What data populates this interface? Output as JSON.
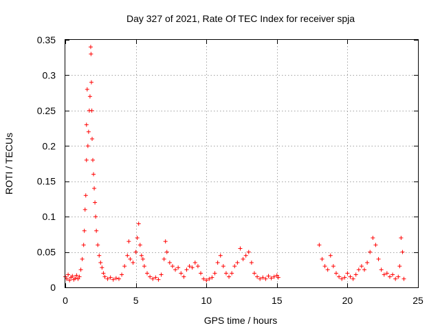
{
  "chart_data": {
    "type": "scatter",
    "title": "Day 327 of 2021, Rate Of TEC Index for receiver spja",
    "xlabel": "GPS time / hours",
    "ylabel": "ROTI / TECUs",
    "xlim": [
      0,
      25
    ],
    "ylim": [
      0,
      0.35
    ],
    "xticks": [
      0,
      5,
      10,
      15,
      20,
      25
    ],
    "xtick_labels": [
      "0",
      "5",
      "10",
      "15",
      "20",
      "25"
    ],
    "yticks": [
      0,
      0.05,
      0.1,
      0.15,
      0.2,
      0.25,
      0.3,
      0.35
    ],
    "ytick_labels": [
      "0",
      "0.05",
      "0.1",
      "0.15",
      "0.2",
      "0.25",
      "0.3",
      "0.35"
    ],
    "grid": true,
    "marker": "plus",
    "marker_color": "#ff0000",
    "series": [
      {
        "name": "ROTI",
        "points": [
          [
            0.0,
            0.015
          ],
          [
            0.1,
            0.012
          ],
          [
            0.2,
            0.018
          ],
          [
            0.3,
            0.01
          ],
          [
            0.4,
            0.014
          ],
          [
            0.5,
            0.016
          ],
          [
            0.6,
            0.011
          ],
          [
            0.7,
            0.013
          ],
          [
            0.8,
            0.017
          ],
          [
            0.9,
            0.012
          ],
          [
            1.0,
            0.015
          ],
          [
            1.1,
            0.025
          ],
          [
            1.2,
            0.04
          ],
          [
            1.3,
            0.06
          ],
          [
            1.35,
            0.08
          ],
          [
            1.4,
            0.11
          ],
          [
            1.45,
            0.13
          ],
          [
            1.5,
            0.18
          ],
          [
            1.5,
            0.23
          ],
          [
            1.55,
            0.28
          ],
          [
            1.6,
            0.2
          ],
          [
            1.65,
            0.22
          ],
          [
            1.7,
            0.25
          ],
          [
            1.75,
            0.27
          ],
          [
            1.8,
            0.34
          ],
          [
            1.82,
            0.33
          ],
          [
            1.85,
            0.29
          ],
          [
            1.88,
            0.25
          ],
          [
            1.9,
            0.21
          ],
          [
            1.95,
            0.18
          ],
          [
            2.0,
            0.16
          ],
          [
            2.05,
            0.14
          ],
          [
            2.1,
            0.12
          ],
          [
            2.15,
            0.1
          ],
          [
            2.2,
            0.08
          ],
          [
            2.3,
            0.06
          ],
          [
            2.4,
            0.045
          ],
          [
            2.5,
            0.035
          ],
          [
            2.6,
            0.028
          ],
          [
            2.7,
            0.02
          ],
          [
            2.8,
            0.015
          ],
          [
            3.0,
            0.012
          ],
          [
            3.2,
            0.014
          ],
          [
            3.4,
            0.011
          ],
          [
            3.6,
            0.013
          ],
          [
            3.8,
            0.012
          ],
          [
            4.0,
            0.018
          ],
          [
            4.2,
            0.03
          ],
          [
            4.4,
            0.045
          ],
          [
            4.5,
            0.065
          ],
          [
            4.6,
            0.04
          ],
          [
            4.8,
            0.035
          ],
          [
            5.0,
            0.05
          ],
          [
            5.1,
            0.07
          ],
          [
            5.2,
            0.09
          ],
          [
            5.3,
            0.06
          ],
          [
            5.4,
            0.045
          ],
          [
            5.5,
            0.04
          ],
          [
            5.6,
            0.03
          ],
          [
            5.8,
            0.02
          ],
          [
            6.0,
            0.015
          ],
          [
            6.2,
            0.012
          ],
          [
            6.4,
            0.014
          ],
          [
            6.6,
            0.011
          ],
          [
            6.8,
            0.018
          ],
          [
            7.0,
            0.04
          ],
          [
            7.1,
            0.065
          ],
          [
            7.2,
            0.05
          ],
          [
            7.4,
            0.035
          ],
          [
            7.6,
            0.03
          ],
          [
            7.8,
            0.025
          ],
          [
            8.0,
            0.028
          ],
          [
            8.2,
            0.02
          ],
          [
            8.4,
            0.015
          ],
          [
            8.6,
            0.025
          ],
          [
            8.8,
            0.03
          ],
          [
            9.0,
            0.028
          ],
          [
            9.2,
            0.035
          ],
          [
            9.4,
            0.03
          ],
          [
            9.6,
            0.02
          ],
          [
            9.8,
            0.012
          ],
          [
            10.0,
            0.01
          ],
          [
            10.2,
            0.012
          ],
          [
            10.4,
            0.014
          ],
          [
            10.6,
            0.02
          ],
          [
            10.8,
            0.035
          ],
          [
            11.0,
            0.045
          ],
          [
            11.2,
            0.03
          ],
          [
            11.4,
            0.02
          ],
          [
            11.6,
            0.015
          ],
          [
            11.8,
            0.02
          ],
          [
            12.0,
            0.03
          ],
          [
            12.2,
            0.035
          ],
          [
            12.4,
            0.055
          ],
          [
            12.6,
            0.04
          ],
          [
            12.8,
            0.045
          ],
          [
            13.0,
            0.05
          ],
          [
            13.2,
            0.035
          ],
          [
            13.4,
            0.02
          ],
          [
            13.6,
            0.015
          ],
          [
            13.8,
            0.012
          ],
          [
            14.0,
            0.014
          ],
          [
            14.2,
            0.012
          ],
          [
            14.4,
            0.016
          ],
          [
            14.6,
            0.013
          ],
          [
            14.8,
            0.015
          ],
          [
            15.0,
            0.017
          ],
          [
            15.1,
            0.014
          ],
          [
            18.0,
            0.06
          ],
          [
            18.2,
            0.04
          ],
          [
            18.4,
            0.03
          ],
          [
            18.6,
            0.025
          ],
          [
            18.8,
            0.045
          ],
          [
            19.0,
            0.03
          ],
          [
            19.2,
            0.02
          ],
          [
            19.4,
            0.015
          ],
          [
            19.6,
            0.012
          ],
          [
            19.8,
            0.014
          ],
          [
            20.0,
            0.02
          ],
          [
            20.2,
            0.015
          ],
          [
            20.4,
            0.012
          ],
          [
            20.6,
            0.018
          ],
          [
            20.8,
            0.025
          ],
          [
            21.0,
            0.03
          ],
          [
            21.2,
            0.025
          ],
          [
            21.4,
            0.035
          ],
          [
            21.6,
            0.05
          ],
          [
            21.8,
            0.07
          ],
          [
            22.0,
            0.06
          ],
          [
            22.2,
            0.04
          ],
          [
            22.4,
            0.025
          ],
          [
            22.6,
            0.018
          ],
          [
            22.8,
            0.02
          ],
          [
            23.0,
            0.015
          ],
          [
            23.2,
            0.018
          ],
          [
            23.4,
            0.012
          ],
          [
            23.6,
            0.015
          ],
          [
            23.7,
            0.03
          ],
          [
            23.8,
            0.07
          ],
          [
            23.9,
            0.05
          ],
          [
            24.0,
            0.012
          ]
        ]
      }
    ]
  }
}
